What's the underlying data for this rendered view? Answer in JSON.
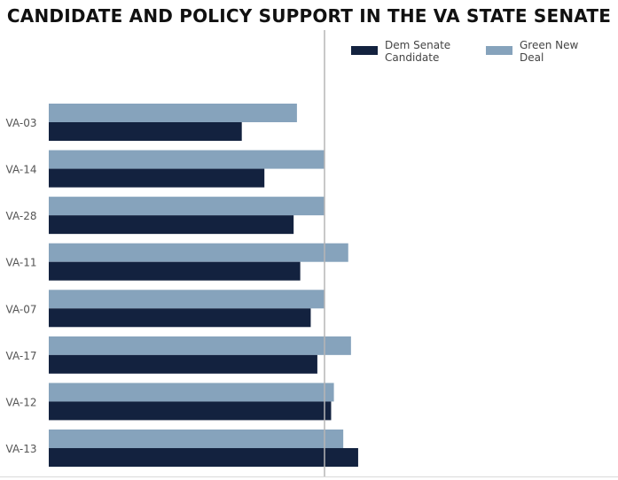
{
  "colors": {
    "dem": "#13223f",
    "gnd": "#86a3bc",
    "reference_line": "#b5b5b5",
    "label": "#555555"
  },
  "chart_data": {
    "type": "bar",
    "orientation": "horizontal",
    "title": "CANDIDATE AND POLICY SUPPORT IN THE VA STATE SENATE",
    "xlabel": "",
    "ylabel": "",
    "xlim": [
      0,
      1
    ],
    "reference_line": 0.5,
    "grid": false,
    "legend_position": "top-right",
    "categories": [
      "VA-03",
      "VA-14",
      "VA-28",
      "VA-11",
      "VA-07",
      "VA-17",
      "VA-12",
      "VA-13"
    ],
    "series": [
      {
        "name": "Green New Deal",
        "color_key": "gnd",
        "values": [
          0.45,
          0.5,
          0.5,
          0.543,
          0.5,
          0.548,
          0.517,
          0.534
        ]
      },
      {
        "name": "Dem Senate Candidate",
        "color_key": "dem",
        "values": [
          0.35,
          0.391,
          0.444,
          0.456,
          0.475,
          0.487,
          0.512,
          0.561
        ]
      }
    ]
  },
  "legend": {
    "dem_label": "Dem Senate Candidate",
    "gnd_label": "Green New Deal"
  }
}
